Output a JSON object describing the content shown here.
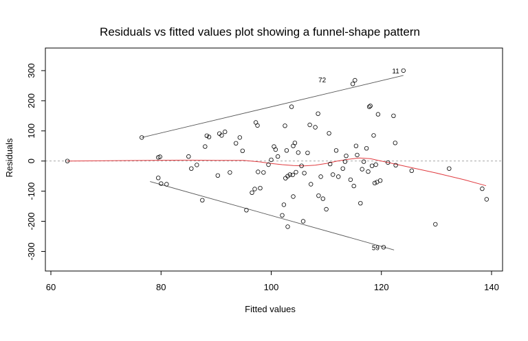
{
  "chart_data": {
    "type": "scatter",
    "title": "Residuals vs fitted values plot showing a funnel-shape pattern",
    "xlabel": "Fitted values",
    "ylabel": "Residuals",
    "xlim": [
      59,
      142
    ],
    "ylim": [
      -365,
      375
    ],
    "xticks": [
      60,
      80,
      100,
      120,
      140
    ],
    "yticks": [
      -300,
      -200,
      -100,
      0,
      100,
      200,
      300
    ],
    "points": [
      [
        63,
        0
      ],
      [
        76.5,
        78
      ],
      [
        79.5,
        12
      ],
      [
        79.8,
        14
      ],
      [
        79.5,
        -56
      ],
      [
        80,
        -75
      ],
      [
        81,
        -77
      ],
      [
        85,
        15
      ],
      [
        85.5,
        -25
      ],
      [
        86.5,
        -13
      ],
      [
        87.5,
        -130
      ],
      [
        88,
        48
      ],
      [
        88.3,
        84
      ],
      [
        88.7,
        80
      ],
      [
        90.3,
        -48
      ],
      [
        90.6,
        91
      ],
      [
        91,
        85
      ],
      [
        91.6,
        97
      ],
      [
        92.5,
        -38
      ],
      [
        93.6,
        59
      ],
      [
        94.3,
        78
      ],
      [
        94.8,
        34
      ],
      [
        95.5,
        -163
      ],
      [
        96.5,
        -105
      ],
      [
        97,
        -93
      ],
      [
        97.2,
        128
      ],
      [
        97.5,
        118
      ],
      [
        97.6,
        -36
      ],
      [
        98,
        -90
      ],
      [
        98.6,
        -38
      ],
      [
        99.5,
        -12
      ],
      [
        100,
        4
      ],
      [
        100.5,
        48
      ],
      [
        100.8,
        38
      ],
      [
        101.2,
        15
      ],
      [
        102,
        -180
      ],
      [
        102.3,
        -145
      ],
      [
        102.5,
        117
      ],
      [
        102.6,
        -57
      ],
      [
        102.8,
        35
      ],
      [
        103,
        -50
      ],
      [
        103,
        -218
      ],
      [
        103.4,
        -45
      ],
      [
        103.7,
        180
      ],
      [
        103.9,
        -46
      ],
      [
        104,
        50
      ],
      [
        104,
        -118
      ],
      [
        104.3,
        60
      ],
      [
        104.5,
        -37
      ],
      [
        104.9,
        28
      ],
      [
        105.5,
        -16
      ],
      [
        105.8,
        -200
      ],
      [
        106,
        -40
      ],
      [
        106.6,
        27
      ],
      [
        107,
        120
      ],
      [
        107.2,
        -77
      ],
      [
        108,
        112
      ],
      [
        108.5,
        157
      ],
      [
        108.6,
        -115
      ],
      [
        109,
        -52
      ],
      [
        109.4,
        -125
      ],
      [
        110,
        -160
      ],
      [
        110.5,
        92
      ],
      [
        110.7,
        -10
      ],
      [
        111.2,
        -45
      ],
      [
        111.8,
        35
      ],
      [
        112.2,
        -52
      ],
      [
        113,
        -25
      ],
      [
        113.4,
        -2
      ],
      [
        113.6,
        17
      ],
      [
        114.4,
        -62
      ],
      [
        114.8,
        256
      ],
      [
        115,
        -83
      ],
      [
        115.2,
        268
      ],
      [
        115.4,
        50
      ],
      [
        115.6,
        20
      ],
      [
        116.2,
        -140
      ],
      [
        116.5,
        -27
      ],
      [
        116.8,
        -2
      ],
      [
        117.3,
        42
      ],
      [
        117.6,
        -35
      ],
      [
        117.8,
        180
      ],
      [
        118,
        183
      ],
      [
        118.3,
        -16
      ],
      [
        118.6,
        85
      ],
      [
        118.8,
        -73
      ],
      [
        119,
        -12
      ],
      [
        119.2,
        -70
      ],
      [
        119.4,
        155
      ],
      [
        119.8,
        -65
      ],
      [
        120.4,
        -286
      ],
      [
        121.2,
        -5
      ],
      [
        122.2,
        150
      ],
      [
        122.5,
        60
      ],
      [
        122.6,
        -14
      ],
      [
        124,
        300
      ],
      [
        125.5,
        -32
      ],
      [
        129.8,
        -210
      ],
      [
        132.3,
        -25
      ],
      [
        138.3,
        -92
      ],
      [
        139.1,
        -127
      ]
    ],
    "point_labels": [
      {
        "text": "72",
        "x": 110.7,
        "y": 270
      },
      {
        "text": "11",
        "x": 124,
        "y": 300
      },
      {
        "text": "59",
        "x": 120.4,
        "y": -286
      }
    ],
    "smooth_line": [
      [
        63,
        0
      ],
      [
        70,
        1
      ],
      [
        78,
        2
      ],
      [
        85,
        3
      ],
      [
        90,
        2
      ],
      [
        95,
        2
      ],
      [
        98,
        -3
      ],
      [
        100,
        -8
      ],
      [
        102,
        -12
      ],
      [
        104,
        -15
      ],
      [
        106,
        -16
      ],
      [
        108,
        -14
      ],
      [
        110,
        -8
      ],
      [
        112,
        0
      ],
      [
        114,
        6
      ],
      [
        116,
        10
      ],
      [
        118,
        8
      ],
      [
        120,
        0
      ],
      [
        122,
        -8
      ],
      [
        125,
        -20
      ],
      [
        130,
        -40
      ],
      [
        135,
        -62
      ],
      [
        139,
        -82
      ]
    ],
    "envelope_upper": [
      [
        76.5,
        78
      ],
      [
        124,
        284
      ]
    ],
    "envelope_lower": [
      [
        78,
        -68
      ],
      [
        122.3,
        -295
      ]
    ],
    "grid": false,
    "reference_line": 0,
    "colors": {
      "points": "#000000",
      "smooth": "#e0393e",
      "envelope": "#555555",
      "reference": "#9a9a9a"
    }
  }
}
